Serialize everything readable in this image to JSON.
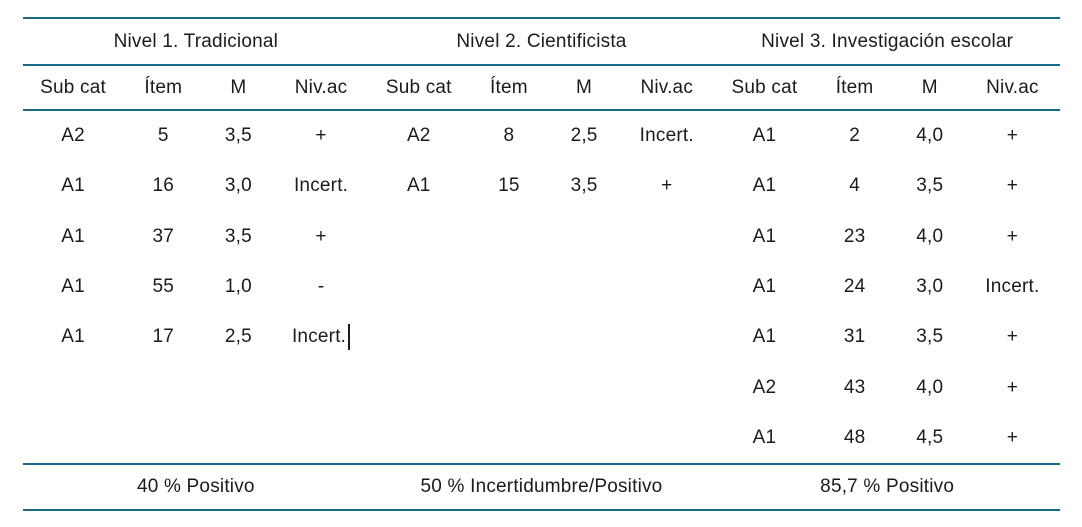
{
  "table": {
    "column_headers": [
      "Sub cat",
      "Ítem",
      "M",
      "Niv.ac"
    ],
    "groups": [
      {
        "title": "Nivel 1. Tradicional",
        "rows": [
          [
            "A2",
            "5",
            "3,5",
            "+"
          ],
          [
            "A1",
            "16",
            "3,0",
            "Incert."
          ],
          [
            "A1",
            "37",
            "3,5",
            "+"
          ],
          [
            "A1",
            "55",
            "1,0",
            "-"
          ],
          [
            "A1",
            "17",
            "2,5",
            "Incert."
          ]
        ],
        "summary": "40 % Positivo"
      },
      {
        "title": "Nivel 2. Cientificista",
        "rows": [
          [
            "A2",
            "8",
            "2,5",
            "Incert."
          ],
          [
            "A1",
            "15",
            "3,5",
            "+"
          ]
        ],
        "summary": "50 % Incertidumbre/Positivo"
      },
      {
        "title": "Nivel 3. Investigación escolar",
        "rows": [
          [
            "A1",
            "2",
            "4,0",
            "+"
          ],
          [
            "A1",
            "4",
            "3,5",
            "+"
          ],
          [
            "A1",
            "23",
            "4,0",
            "+"
          ],
          [
            "A1",
            "24",
            "3,0",
            "Incert."
          ],
          [
            "A1",
            "31",
            "3,5",
            "+"
          ],
          [
            "A2",
            "43",
            "4,0",
            "+"
          ],
          [
            "A1",
            "48",
            "4,5",
            "+"
          ]
        ],
        "summary": "85,7 % Positivo"
      }
    ],
    "text_cursor": {
      "group": 0,
      "row": 4,
      "col": 3
    }
  },
  "colors": {
    "rule": "#17698a",
    "text": "#1b1b1d",
    "background": "#ffffff"
  }
}
